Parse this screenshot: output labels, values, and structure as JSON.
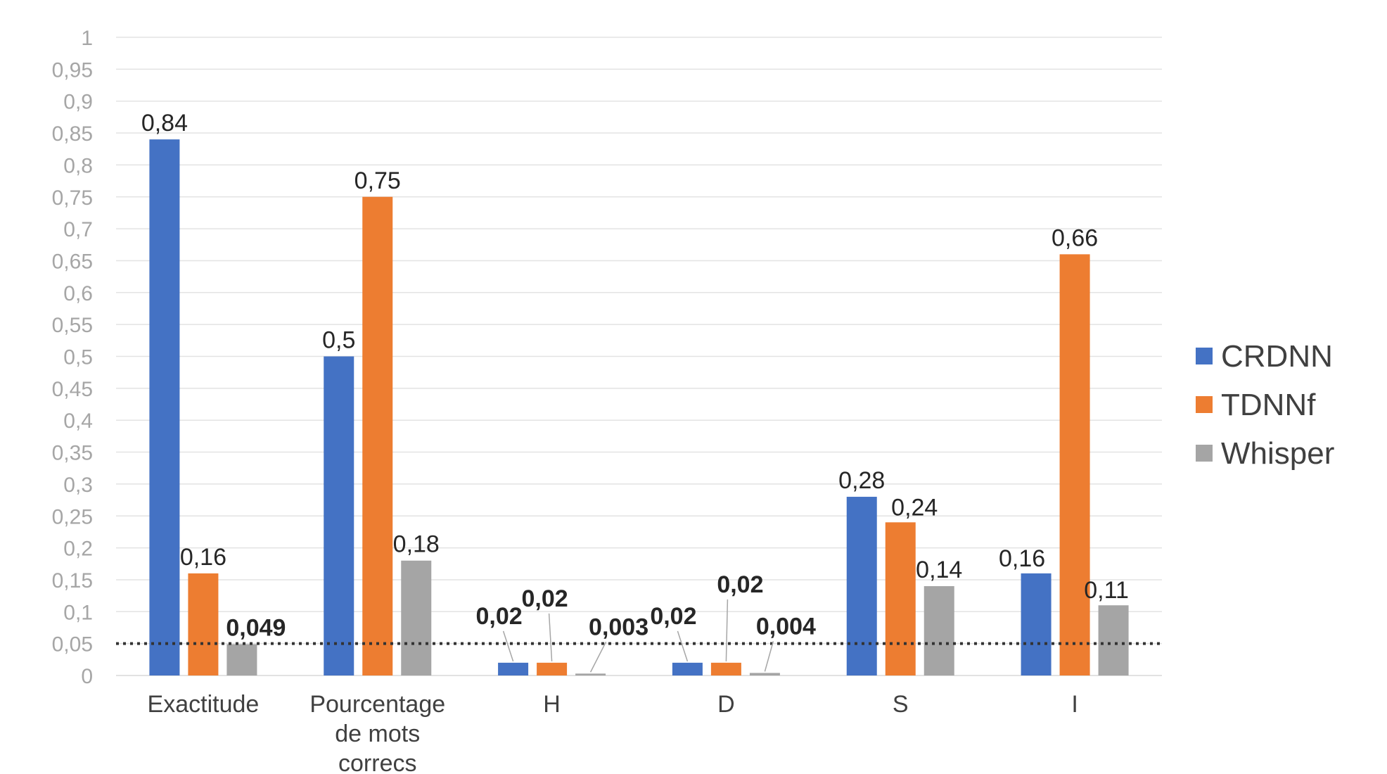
{
  "chart_data": {
    "type": "bar",
    "categories": [
      [
        "Exactitude"
      ],
      [
        "Pourcentage",
        "de mots",
        "correcs"
      ],
      [
        "H"
      ],
      [
        "D"
      ],
      [
        "S"
      ],
      [
        "I"
      ]
    ],
    "series": [
      {
        "name": "CRDNN",
        "color": "#4472C4",
        "values": [
          0.84,
          0.5,
          0.02,
          0.02,
          0.28,
          0.16
        ],
        "labels": [
          "0,84",
          "0,5",
          "0,02",
          "0,02",
          "0,28",
          "0,16"
        ]
      },
      {
        "name": "TDNNf",
        "color": "#ED7D31",
        "values": [
          0.16,
          0.75,
          0.02,
          0.02,
          0.24,
          0.66
        ],
        "labels": [
          "0,16",
          "0,75",
          "0,02",
          "0,02",
          "0,24",
          "0,66"
        ]
      },
      {
        "name": "Whisper",
        "color": "#A5A5A5",
        "values": [
          0.049,
          0.18,
          0.003,
          0.004,
          0.14,
          0.11
        ],
        "labels": [
          "0,049",
          "0,18",
          "0,003",
          "0,004",
          "0,14",
          "0,11"
        ]
      }
    ],
    "ylim": [
      0,
      1
    ],
    "yticks": [
      "0",
      "0,05",
      "0,1",
      "0,15",
      "0,2",
      "0,25",
      "0,3",
      "0,35",
      "0,4",
      "0,45",
      "0,5",
      "0,55",
      "0,6",
      "0,65",
      "0,7",
      "0,75",
      "0,8",
      "0,85",
      "0,9",
      "0,95",
      "1"
    ],
    "reference_line": {
      "value": 0.05,
      "style": "dotted",
      "color": "#333333"
    },
    "grid": true,
    "legend_position": "right"
  }
}
